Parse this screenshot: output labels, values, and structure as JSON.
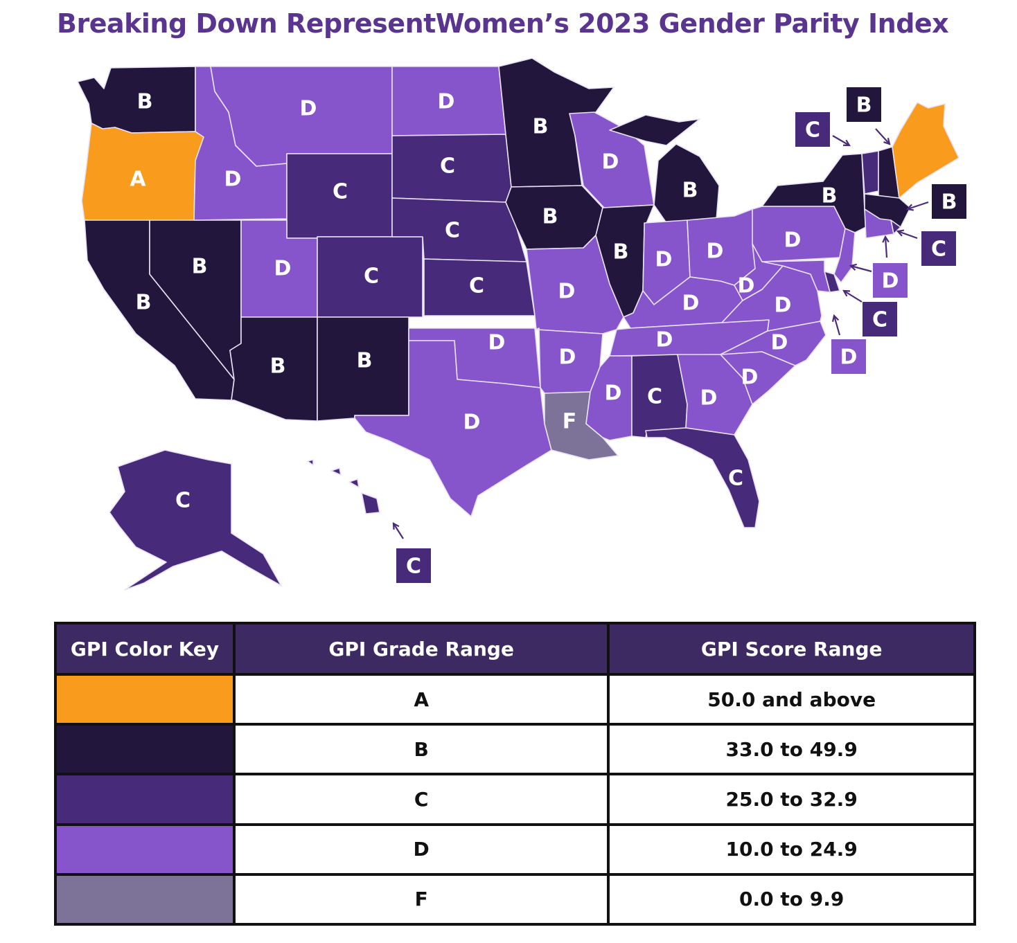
{
  "title": "Breaking Down RepresentWomen’s 2023 Gender Parity Index",
  "colors": {
    "A": "#f99b1c",
    "B": "#22163d",
    "C": "#482a7a",
    "D": "#8755cb",
    "F": "#7d7399"
  },
  "states": [
    {
      "id": "WA",
      "grade": "B"
    },
    {
      "id": "OR",
      "grade": "A"
    },
    {
      "id": "CA",
      "grade": "B"
    },
    {
      "id": "NV",
      "grade": "B"
    },
    {
      "id": "ID",
      "grade": "D"
    },
    {
      "id": "MT",
      "grade": "D"
    },
    {
      "id": "WY",
      "grade": "C"
    },
    {
      "id": "UT",
      "grade": "D"
    },
    {
      "id": "CO",
      "grade": "C"
    },
    {
      "id": "AZ",
      "grade": "B"
    },
    {
      "id": "NM",
      "grade": "B"
    },
    {
      "id": "ND",
      "grade": "D"
    },
    {
      "id": "SD",
      "grade": "C"
    },
    {
      "id": "NE",
      "grade": "C"
    },
    {
      "id": "KS",
      "grade": "C"
    },
    {
      "id": "OK",
      "grade": "D"
    },
    {
      "id": "TX",
      "grade": "D"
    },
    {
      "id": "MN",
      "grade": "B"
    },
    {
      "id": "IA",
      "grade": "B"
    },
    {
      "id": "MO",
      "grade": "D"
    },
    {
      "id": "AR",
      "grade": "D"
    },
    {
      "id": "LA",
      "grade": "F"
    },
    {
      "id": "WI",
      "grade": "D"
    },
    {
      "id": "IL",
      "grade": "B"
    },
    {
      "id": "MI",
      "grade": "B"
    },
    {
      "id": "IN",
      "grade": "D"
    },
    {
      "id": "OH",
      "grade": "D"
    },
    {
      "id": "KY",
      "grade": "D"
    },
    {
      "id": "TN",
      "grade": "D"
    },
    {
      "id": "MS",
      "grade": "D"
    },
    {
      "id": "AL",
      "grade": "C"
    },
    {
      "id": "GA",
      "grade": "D"
    },
    {
      "id": "FL",
      "grade": "C"
    },
    {
      "id": "SC",
      "grade": "D"
    },
    {
      "id": "NC",
      "grade": "D"
    },
    {
      "id": "VA",
      "grade": "D"
    },
    {
      "id": "WV",
      "grade": "D"
    },
    {
      "id": "PA",
      "grade": "D"
    },
    {
      "id": "NY",
      "grade": "B"
    },
    {
      "id": "VT",
      "grade": "C"
    },
    {
      "id": "NH",
      "grade": "B"
    },
    {
      "id": "ME",
      "grade": "A"
    },
    {
      "id": "MA",
      "grade": "B"
    },
    {
      "id": "RI",
      "grade": "C"
    },
    {
      "id": "CT",
      "grade": "D"
    },
    {
      "id": "NJ",
      "grade": "D"
    },
    {
      "id": "DE",
      "grade": "C"
    },
    {
      "id": "MD",
      "grade": "D"
    },
    {
      "id": "AK",
      "grade": "C"
    },
    {
      "id": "HI",
      "grade": "C"
    }
  ],
  "legend": {
    "headers": [
      "GPI Color Key",
      "GPI Grade Range",
      "GPI Score Range"
    ],
    "rows": [
      {
        "grade": "A",
        "score": "50.0 and above"
      },
      {
        "grade": "B",
        "score": "33.0 to 49.9"
      },
      {
        "grade": "C",
        "score": "25.0 to 32.9"
      },
      {
        "grade": "D",
        "score": "10.0 to 24.9"
      },
      {
        "grade": "F",
        "score": "0.0 to 9.9"
      }
    ]
  }
}
